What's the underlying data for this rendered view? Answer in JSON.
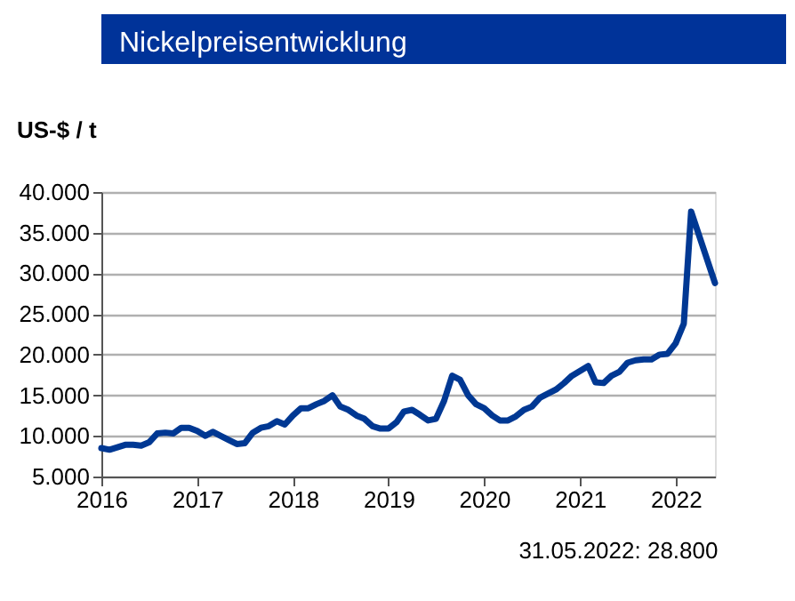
{
  "chart_data": {
    "type": "line",
    "title": "Nickelpreisentwicklung",
    "ylabel": "US-$ / t",
    "annotations": [
      "31.05.2022: 28.800"
    ],
    "x": [
      "2016-01",
      "2016-02",
      "2016-04",
      "2016-05",
      "2016-06",
      "2016-07",
      "2016-08",
      "2016-09",
      "2016-10",
      "2016-11",
      "2016-12",
      "2017-01",
      "2017-02",
      "2017-03",
      "2017-04",
      "2017-05",
      "2017-06",
      "2017-07",
      "2017-08",
      "2017-09",
      "2017-10",
      "2017-11",
      "2017-12",
      "2018-01",
      "2018-02",
      "2018-03",
      "2018-04",
      "2018-05",
      "2018-06",
      "2018-07",
      "2018-08",
      "2018-09",
      "2018-10",
      "2018-11",
      "2018-12",
      "2019-01",
      "2019-02",
      "2019-03",
      "2019-04",
      "2019-05",
      "2019-06",
      "2019-07",
      "2019-08",
      "2019-09",
      "2019-10",
      "2019-11",
      "2019-12",
      "2020-01",
      "2020-02",
      "2020-03",
      "2020-04",
      "2020-05",
      "2020-06",
      "2020-07",
      "2020-08",
      "2020-09",
      "2020-10",
      "2020-11",
      "2020-12",
      "2021-02",
      "2021-03",
      "2021-04",
      "2021-05",
      "2021-06",
      "2021-07",
      "2021-08",
      "2021-09",
      "2021-10",
      "2021-11",
      "2021-12",
      "2022-01",
      "2022-02",
      "2022-03",
      "2022-05-31"
    ],
    "series": [
      {
        "color": "#003893",
        "values": [
          8500,
          8300,
          8900,
          8900,
          8800,
          9200,
          10300,
          10400,
          10300,
          11000,
          11000,
          10600,
          10000,
          10500,
          10000,
          9500,
          9000,
          9100,
          10400,
          11000,
          11200,
          11800,
          11400,
          12500,
          13400,
          13400,
          13900,
          14300,
          15000,
          13600,
          13200,
          12500,
          12100,
          11200,
          10900,
          10900,
          11700,
          13000,
          13200,
          12600,
          11900,
          12100,
          14300,
          17400,
          16900,
          15000,
          13900,
          13400,
          12500,
          11900,
          11900,
          12400,
          13200,
          13600,
          14700,
          15200,
          15700,
          16500,
          17400,
          18600,
          16600,
          16500,
          17400,
          17900,
          19000,
          19300,
          19400,
          19400,
          20000,
          20100,
          21400,
          23800,
          37600,
          28800
        ]
      }
    ],
    "xlim": [
      "2016-01-01",
      "2022-05-31"
    ],
    "xticks": [
      "2016",
      "2017",
      "2018",
      "2019",
      "2020",
      "2021",
      "2022"
    ],
    "ylim": [
      5000,
      40000
    ],
    "yticks": [
      {
        "value": 5000,
        "label": "5.000"
      },
      {
        "value": 10000,
        "label": "10.000"
      },
      {
        "value": 15000,
        "label": "15.000"
      },
      {
        "value": 20000,
        "label": "20.000"
      },
      {
        "value": 25000,
        "label": "25.000"
      },
      {
        "value": 30000,
        "label": "30.000"
      },
      {
        "value": 35000,
        "label": "35.000"
      },
      {
        "value": 40000,
        "label": "40.000"
      }
    ],
    "grid": "y",
    "legend": false,
    "marker": "none",
    "line_style": "solid"
  }
}
